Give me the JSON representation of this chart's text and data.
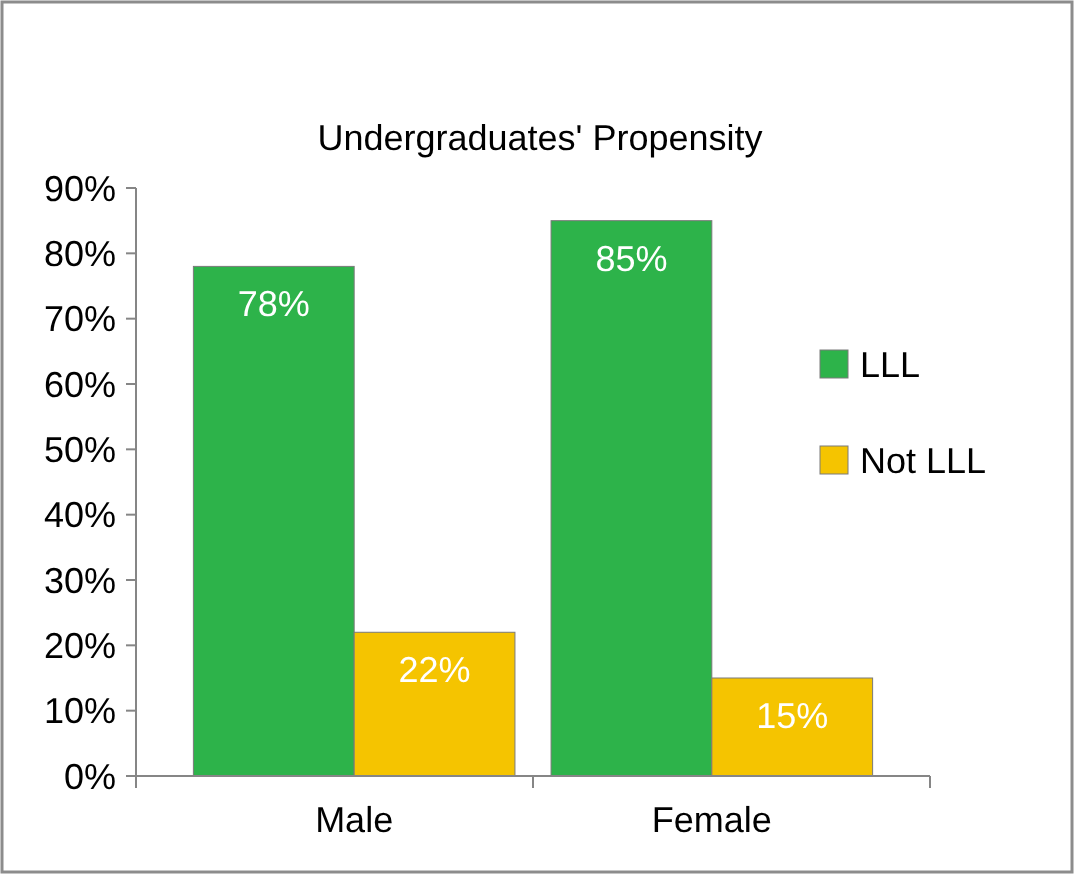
{
  "chart_data": {
    "type": "bar",
    "title": "Undergraduates' Propensity",
    "categories": [
      "Male",
      "Female"
    ],
    "series": [
      {
        "name": "LLL",
        "color": "#2db34a",
        "values": [
          78,
          85
        ],
        "value_labels": [
          "78%",
          "85%"
        ]
      },
      {
        "name": "Not LLL",
        "color": "#f5c400",
        "values": [
          22,
          15
        ],
        "value_labels": [
          "22%",
          "15%"
        ]
      }
    ],
    "ylim": [
      0,
      90
    ],
    "yticks": [
      {
        "value": 0,
        "label": "0%"
      },
      {
        "value": 10,
        "label": "10%"
      },
      {
        "value": 20,
        "label": "20%"
      },
      {
        "value": 30,
        "label": "30%"
      },
      {
        "value": 40,
        "label": "40%"
      },
      {
        "value": 50,
        "label": "50%"
      },
      {
        "value": 60,
        "label": "60%"
      },
      {
        "value": 70,
        "label": "70%"
      },
      {
        "value": 80,
        "label": "80%"
      },
      {
        "value": 90,
        "label": "90%"
      }
    ],
    "grid": false,
    "legend": "right"
  }
}
